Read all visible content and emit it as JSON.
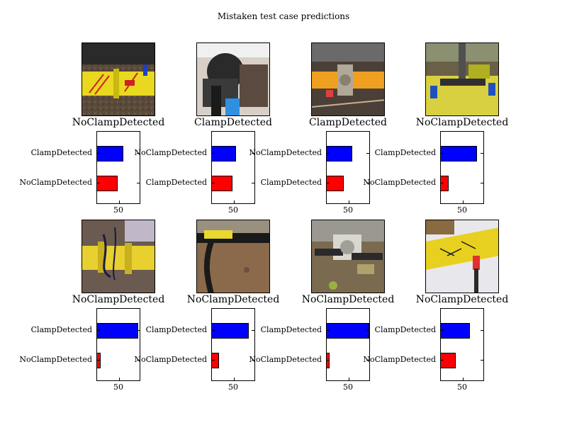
{
  "figure_title": "Mistaken test case predictions",
  "colors": {
    "top_class_bar": "#0000ff",
    "second_class_bar": "#ff0000"
  },
  "chart_data": [
    {
      "type": "bar",
      "orientation": "horizontal",
      "photo": "yellow-clamp-red-marks",
      "true_label": "NoClampDetected",
      "categories": [
        "NoClampDetected",
        "ClampDetected"
      ],
      "values": [
        48,
        62
      ],
      "xticks": [
        50
      ],
      "xlim": [
        0,
        100
      ]
    },
    {
      "type": "bar",
      "orientation": "horizontal",
      "photo": "dark-fitting-blue-tape",
      "true_label": "ClampDetected",
      "categories": [
        "ClampDetected",
        "NoClampDetected"
      ],
      "values": [
        49,
        56
      ],
      "xticks": [
        50
      ],
      "xlim": [
        0,
        100
      ]
    },
    {
      "type": "bar",
      "orientation": "horizontal",
      "photo": "orange-pipe-steel-fitting",
      "true_label": "ClampDetected",
      "categories": [
        "ClampDetected",
        "NoClampDetected"
      ],
      "values": [
        40,
        59
      ],
      "xticks": [
        50
      ],
      "xlim": [
        0,
        100
      ]
    },
    {
      "type": "bar",
      "orientation": "horizontal",
      "photo": "yellow-sheet-blue-tool",
      "true_label": "NoClampDetected",
      "categories": [
        "NoClampDetected",
        "ClampDetected"
      ],
      "values": [
        19,
        84
      ],
      "xticks": [
        50
      ],
      "xlim": [
        0,
        100
      ]
    },
    {
      "type": "bar",
      "orientation": "horizontal",
      "photo": "yellow-pipe-black-cable",
      "true_label": "NoClampDetected",
      "categories": [
        "NoClampDetected",
        "ClampDetected"
      ],
      "values": [
        9,
        95
      ],
      "xticks": [
        50
      ],
      "xlim": [
        0,
        100
      ]
    },
    {
      "type": "bar",
      "orientation": "horizontal",
      "photo": "black-pipe-yellow-end",
      "true_label": "NoClampDetected",
      "categories": [
        "NoClampDetected",
        "ClampDetected"
      ],
      "values": [
        17,
        86
      ],
      "xticks": [
        50
      ],
      "xlim": [
        0,
        100
      ]
    },
    {
      "type": "bar",
      "orientation": "horizontal",
      "photo": "metal-clamp-assembly",
      "true_label": "NoClampDetected",
      "categories": [
        "NoClampDetected",
        "ClampDetected"
      ],
      "values": [
        8,
        98
      ],
      "xticks": [
        50
      ],
      "xlim": [
        0,
        100
      ]
    },
    {
      "type": "bar",
      "orientation": "horizontal",
      "photo": "yellow-pipe-white-sheet",
      "true_label": "NoClampDetected",
      "categories": [
        "NoClampDetected",
        "ClampDetected"
      ],
      "values": [
        35,
        68
      ],
      "xticks": [
        50
      ],
      "xlim": [
        0,
        100
      ]
    }
  ]
}
